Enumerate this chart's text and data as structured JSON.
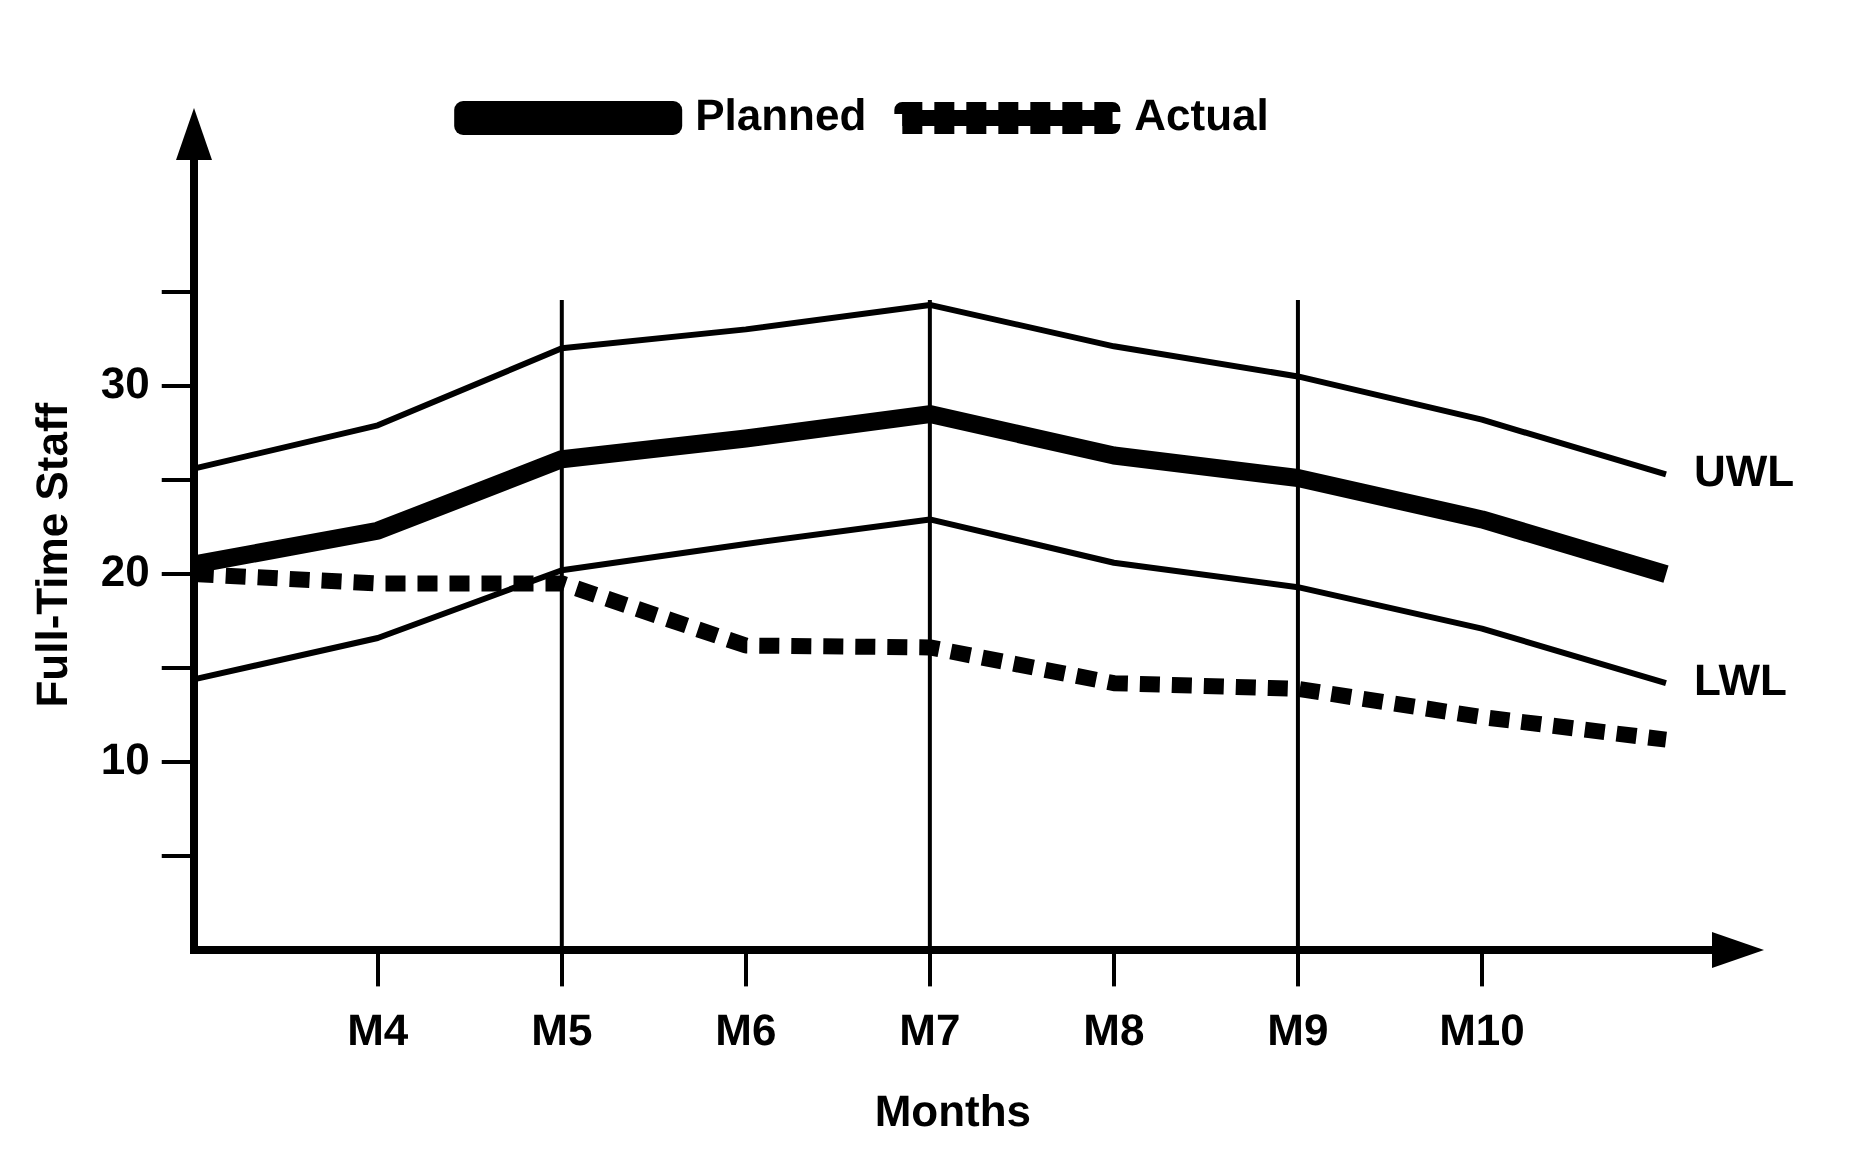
{
  "chart_data": {
    "type": "line",
    "xlabel": "Months",
    "ylabel": "Full-Time Staff",
    "categories": [
      null,
      "M4",
      "M5",
      "M6",
      "M7",
      "M8",
      "M9",
      "M10",
      null
    ],
    "ylim": [
      0,
      42
    ],
    "yticks": [
      {
        "value": 5,
        "label": null
      },
      10,
      {
        "value": 15,
        "label": null
      },
      20,
      {
        "value": 25,
        "label": null
      },
      30,
      {
        "value": 35,
        "label": null
      }
    ],
    "grid": false,
    "legend": "top",
    "marker": "none",
    "series": [
      {
        "name": "Planned",
        "color": "#000000",
        "line_style": "solid",
        "values": [
          20.5,
          22.3,
          26.1,
          27.2,
          28.5,
          26.3,
          25.1,
          22.9,
          20
        ]
      },
      {
        "name": "Actual",
        "color": "#000000",
        "line_style": "dashed",
        "values": [
          20,
          19.5,
          19.5,
          16.2,
          16.1,
          14.2,
          13.9,
          12.4,
          11.2
        ]
      },
      {
        "color": "#000000",
        "line_style": "solid",
        "values": [
          25.6,
          27.9,
          32,
          33,
          34.3,
          32.1,
          30.5,
          28.2,
          25.3
        ]
      },
      {
        "color": "#000000",
        "line_style": "solid",
        "values": [
          14.4,
          16.6,
          20.2,
          21.6,
          22.9,
          20.6,
          19.3,
          17.1,
          14.2
        ]
      }
    ],
    "ref_lines": [
      {
        "axis": "x",
        "value": "M5",
        "label": null
      },
      {
        "axis": "x",
        "value": "M7",
        "label": null
      },
      {
        "axis": "x",
        "value": "M9",
        "label": null
      }
    ],
    "annotations": [
      "UWL",
      "LWL"
    ]
  }
}
